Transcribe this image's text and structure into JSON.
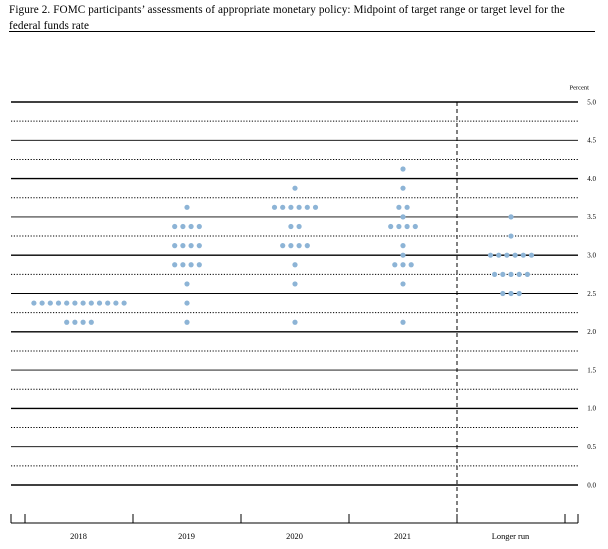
{
  "title": "Figure 2. FOMC participants’ assessments of appropriate monetary policy: Midpoint of target range or target level for the federal funds rate",
  "chart_data": {
    "type": "scatter",
    "subtype": "dot plot",
    "title": "Figure 2. FOMC participants’ assessments of appropriate monetary policy: Midpoint of target range or target level for the federal funds rate",
    "y_unit_label": "Percent",
    "categories": [
      "2018",
      "2019",
      "2020",
      "2021",
      "Longer run"
    ],
    "ylim": [
      0.0,
      5.0
    ],
    "y_ticks": [
      0.0,
      0.5,
      1.0,
      1.5,
      2.0,
      2.5,
      3.0,
      3.5,
      4.0,
      4.5,
      5.0
    ],
    "y_tick_labels": [
      "0.0",
      "0.5",
      "1.0",
      "1.5",
      "2.0",
      "2.5",
      "3.0",
      "3.5",
      "4.0",
      "4.5",
      "5.0"
    ],
    "gridlines": "solid at whole and half percent, dotted at quarter percent",
    "divider_before": "Longer run",
    "dot_color": "#8db4d6",
    "columns": [
      {
        "category": "2018",
        "dots": [
          {
            "y": 2.375,
            "count": 12
          },
          {
            "y": 2.125,
            "count": 4
          }
        ]
      },
      {
        "category": "2019",
        "dots": [
          {
            "y": 3.625,
            "count": 1
          },
          {
            "y": 3.375,
            "count": 4
          },
          {
            "y": 3.125,
            "count": 4
          },
          {
            "y": 2.875,
            "count": 4
          },
          {
            "y": 2.625,
            "count": 1
          },
          {
            "y": 2.375,
            "count": 1
          },
          {
            "y": 2.125,
            "count": 1
          }
        ]
      },
      {
        "category": "2020",
        "dots": [
          {
            "y": 3.875,
            "count": 1
          },
          {
            "y": 3.625,
            "count": 6
          },
          {
            "y": 3.375,
            "count": 2
          },
          {
            "y": 3.125,
            "count": 4
          },
          {
            "y": 2.875,
            "count": 1
          },
          {
            "y": 2.625,
            "count": 1
          },
          {
            "y": 2.125,
            "count": 1
          }
        ]
      },
      {
        "category": "2021",
        "dots": [
          {
            "y": 4.125,
            "count": 1
          },
          {
            "y": 3.875,
            "count": 1
          },
          {
            "y": 3.625,
            "count": 2
          },
          {
            "y": 3.5,
            "count": 1
          },
          {
            "y": 3.375,
            "count": 4
          },
          {
            "y": 3.125,
            "count": 1
          },
          {
            "y": 3.0,
            "count": 1
          },
          {
            "y": 2.875,
            "count": 3
          },
          {
            "y": 2.625,
            "count": 1
          },
          {
            "y": 2.125,
            "count": 1
          }
        ]
      },
      {
        "category": "Longer run",
        "dots": [
          {
            "y": 3.5,
            "count": 1
          },
          {
            "y": 3.25,
            "count": 1
          },
          {
            "y": 3.0,
            "count": 6
          },
          {
            "y": 2.75,
            "count": 5
          },
          {
            "y": 2.5,
            "count": 3
          }
        ]
      }
    ]
  }
}
